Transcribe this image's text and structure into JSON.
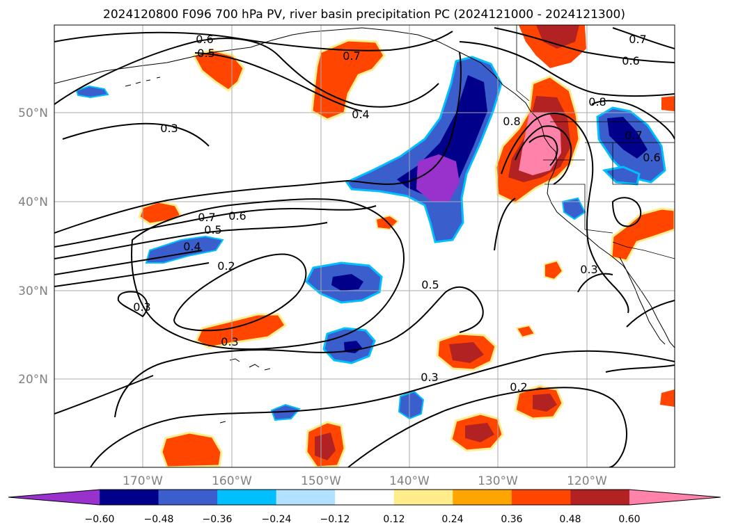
{
  "title": "2024120800 F096 700 hPa PV, river basin precipitation PC (2024121000 - 2024121300)",
  "map": {
    "lon_ticks": [
      "170°W",
      "160°W",
      "150°W",
      "140°W",
      "130°W",
      "120°W"
    ],
    "lat_ticks": [
      "50°N",
      "40°N",
      "30°N",
      "20°N"
    ],
    "contour_labels": [
      "0.6",
      "0.5",
      "0.7",
      "0.4",
      "0.3",
      "0.7",
      "0.6",
      "0.5",
      "0.4",
      "0.2",
      "0.3",
      "0.3",
      "0.5",
      "0.3",
      "0.2",
      "0.8",
      "0.8",
      "0.7",
      "0.6",
      "0.7",
      "0.6",
      "0.3"
    ]
  },
  "colorbar": {
    "ticks": [
      "−0.60",
      "−0.48",
      "−0.36",
      "−0.24",
      "−0.12",
      "0.12",
      "0.24",
      "0.36",
      "0.48",
      "0.60"
    ],
    "colors": [
      "#9932cc",
      "#00008b",
      "#3a5fcd",
      "#00bfff",
      "#b0e2ff",
      "#ffffff",
      "#ffec8b",
      "#ffa500",
      "#ff4500",
      "#b22222",
      "#ff82ab"
    ]
  }
}
